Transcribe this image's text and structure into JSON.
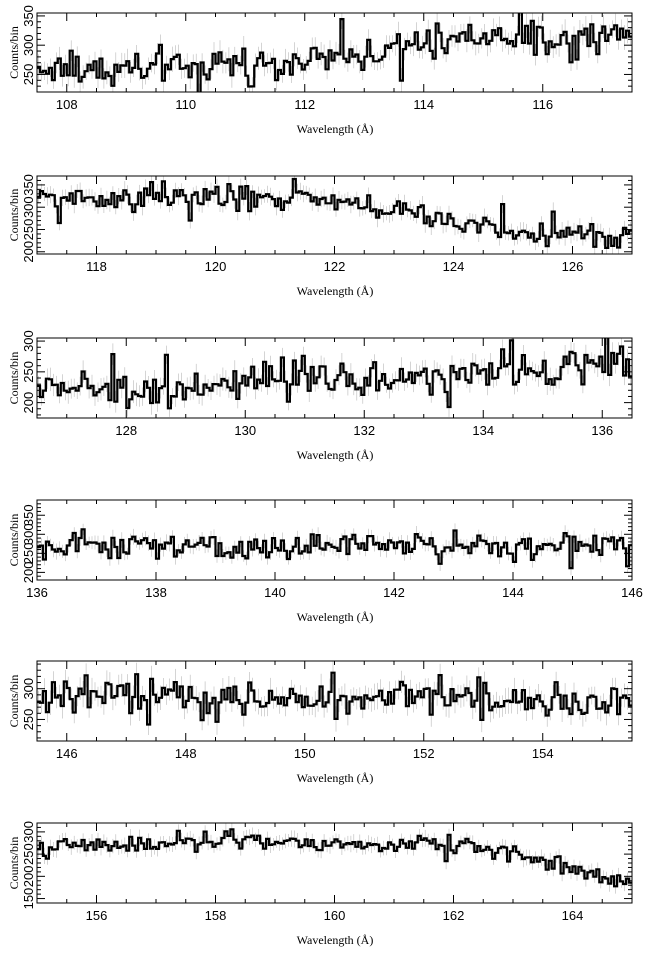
{
  "chart_data": [
    {
      "type": "line",
      "style": "step histogram with error bars",
      "xlabel": "Wavelength (Å)",
      "ylabel": "Counts/bin",
      "xlim": [
        107.5,
        117.5
      ],
      "ylim": [
        220,
        355
      ],
      "xticks": [
        108,
        110,
        112,
        114,
        116
      ],
      "yticks": [
        250,
        300,
        350
      ],
      "grid": false,
      "trend": [
        [
          107.5,
          258
        ],
        [
          110,
          262
        ],
        [
          112,
          272
        ],
        [
          114,
          300
        ],
        [
          115,
          315
        ],
        [
          116,
          305
        ],
        [
          117.5,
          318
        ]
      ],
      "noise": 22,
      "error": 18
    },
    {
      "type": "line",
      "style": "step histogram with error bars",
      "xlabel": "Wavelength (Å)",
      "ylabel": "Counts/bin",
      "xlim": [
        117,
        127
      ],
      "ylim": [
        195,
        370
      ],
      "xticks": [
        118,
        120,
        122,
        124,
        126
      ],
      "yticks": [
        200,
        250,
        300,
        350
      ],
      "grid": false,
      "trend": [
        [
          117,
          320
        ],
        [
          119,
          322
        ],
        [
          121.3,
          325
        ],
        [
          122,
          305
        ],
        [
          123,
          295
        ],
        [
          124,
          265
        ],
        [
          125.5,
          240
        ],
        [
          127,
          228
        ]
      ],
      "noise": 20,
      "error": 18
    },
    {
      "type": "line",
      "style": "step histogram with error bars",
      "xlabel": "Wavelength (Å)",
      "ylabel": "Counts/bin",
      "xlim": [
        126.5,
        136.5
      ],
      "ylim": [
        175,
        305
      ],
      "xticks": [
        128,
        130,
        132,
        134,
        136
      ],
      "yticks": [
        200,
        250,
        300
      ],
      "grid": false,
      "trend": [
        [
          126.5,
          225
        ],
        [
          129,
          222
        ],
        [
          130,
          228
        ],
        [
          132,
          240
        ],
        [
          134,
          245
        ],
        [
          136.5,
          268
        ]
      ],
      "noise": 20,
      "error": 16
    },
    {
      "type": "line",
      "style": "step histogram with error bars",
      "xlabel": "Wavelength (Å)",
      "ylabel": "Counts/bin",
      "xlim": [
        136,
        146
      ],
      "ylim": [
        180,
        390
      ],
      "xticks": [
        136,
        138,
        140,
        142,
        144,
        146
      ],
      "yticks": [
        200,
        250,
        300,
        350
      ],
      "grid": false,
      "trend": [
        [
          136,
          265
        ],
        [
          138,
          268
        ],
        [
          140,
          262
        ],
        [
          142,
          275
        ],
        [
          144,
          270
        ],
        [
          146,
          268
        ]
      ],
      "noise": 24,
      "error": 18
    },
    {
      "type": "line",
      "style": "step histogram with error bars",
      "xlabel": "Wavelength (Å)",
      "ylabel": "Counts/bin",
      "xlim": [
        145.5,
        155.5
      ],
      "ylim": [
        215,
        345
      ],
      "xticks": [
        146,
        148,
        150,
        152,
        154
      ],
      "yticks": [
        250,
        300
      ],
      "grid": false,
      "trend": [
        [
          145.5,
          278
        ],
        [
          147,
          290
        ],
        [
          150,
          282
        ],
        [
          152,
          288
        ],
        [
          155.5,
          276
        ]
      ],
      "noise": 20,
      "error": 18
    },
    {
      "type": "line",
      "style": "step histogram with error bars",
      "xlabel": "Wavelength (Å)",
      "ylabel": "Counts/bin",
      "xlim": [
        155,
        165
      ],
      "ylim": [
        140,
        320
      ],
      "xticks": [
        156,
        158,
        160,
        162,
        164
      ],
      "yticks": [
        150,
        200,
        250,
        300
      ],
      "grid": false,
      "trend": [
        [
          155,
          262
        ],
        [
          158,
          278
        ],
        [
          160,
          272
        ],
        [
          162.5,
          268
        ],
        [
          163.5,
          240
        ],
        [
          164.5,
          195
        ],
        [
          165,
          185
        ]
      ],
      "noise": 14,
      "error": 16
    }
  ]
}
